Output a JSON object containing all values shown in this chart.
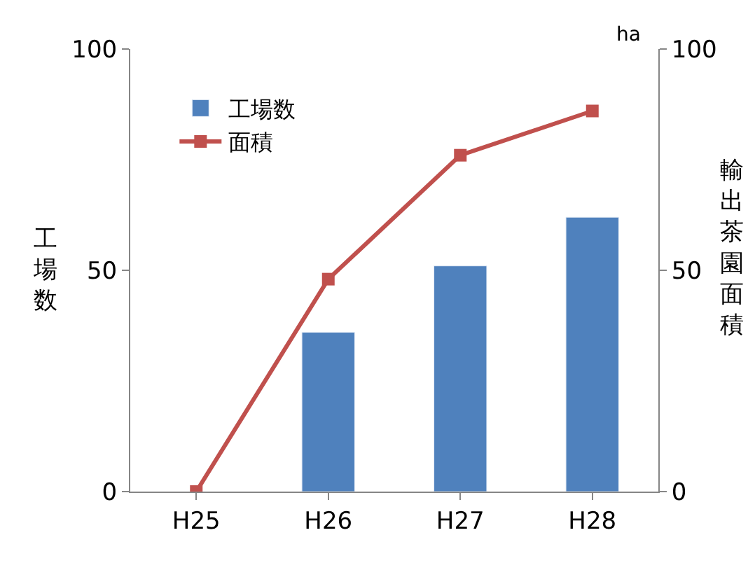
{
  "chart_data": {
    "type": "bar",
    "categories": [
      "H25",
      "H26",
      "H27",
      "H28"
    ],
    "series": [
      {
        "name": "工場数",
        "color": "#4f81bd",
        "values": [
          null,
          36,
          51,
          62
        ]
      },
      {
        "name": "面積",
        "type": "line",
        "axis": "y2",
        "color": "#c0504d",
        "values": [
          0,
          48,
          76,
          86
        ]
      }
    ],
    "ylabel": "工場数",
    "y2label": "輸出茶園面積",
    "annotations": [
      "ha"
    ],
    "ylim": [
      0,
      100
    ],
    "yticks": [
      0,
      50,
      100
    ],
    "y2lim": [
      0,
      100
    ],
    "y2ticks": [
      0,
      50,
      100
    ],
    "legend": "top left",
    "marker": "square",
    "line_style": "solid"
  }
}
